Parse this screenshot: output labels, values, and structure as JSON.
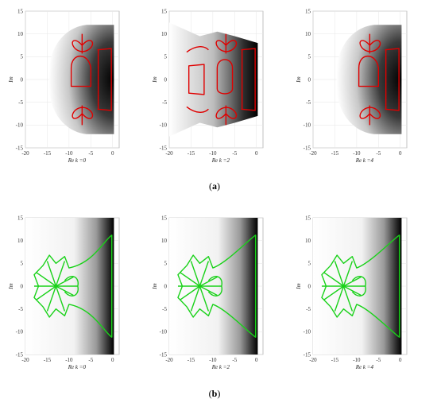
{
  "figure": {
    "captions": [
      {
        "open": "(",
        "letter": "a",
        "close": ")"
      },
      {
        "open": "(",
        "letter": "b",
        "close": ")"
      }
    ],
    "axes": {
      "y_label": "Im",
      "x_ticks": [
        "-20",
        "-15",
        "-10",
        "-5",
        "0"
      ],
      "y_ticks": [
        "15",
        "10",
        "5",
        "0",
        "-5",
        "-10",
        "-15"
      ]
    },
    "panels": [
      {
        "id": "a1",
        "row": "a",
        "xlabel": "Re k =0",
        "shading": "gray-dome",
        "curve_color": "#e00000",
        "curve_style": "a-dome"
      },
      {
        "id": "a2",
        "row": "a",
        "xlabel": "Re k =2",
        "shading": "gray-band",
        "curve_color": "#e00000",
        "curve_style": "a-band"
      },
      {
        "id": "a3",
        "row": "a",
        "xlabel": "Re k =4",
        "shading": "gray-dome",
        "curve_color": "#e00000",
        "curve_style": "a-dome"
      },
      {
        "id": "b1",
        "row": "b",
        "xlabel": "Re k =0",
        "shading": "right-gradient",
        "curve_color": "#19d219",
        "curve_style": "b-narrow"
      },
      {
        "id": "b2",
        "row": "b",
        "xlabel": "Re k =2",
        "shading": "right-gradient",
        "curve_color": "#19d219",
        "curve_style": "b-wide"
      },
      {
        "id": "b3",
        "row": "b",
        "xlabel": "Re k =4",
        "shading": "right-gradient",
        "curve_color": "#19d219",
        "curve_style": "b-wide"
      }
    ]
  }
}
